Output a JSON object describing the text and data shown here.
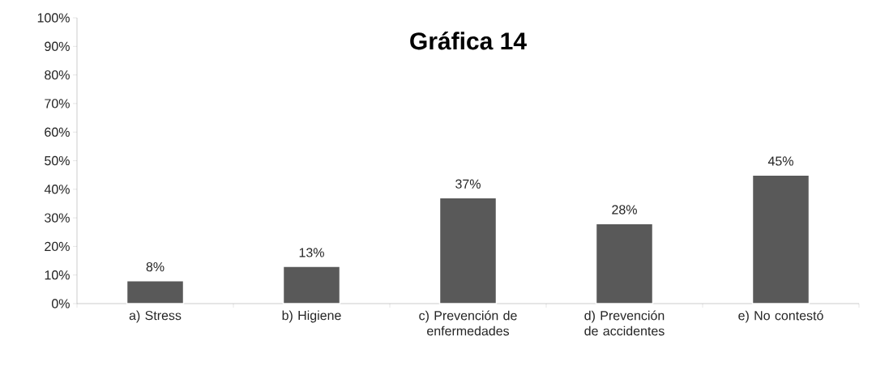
{
  "chart_data": {
    "type": "bar",
    "title": "Gráfica 14",
    "categories": [
      "a) Stress",
      "b) Higiene",
      "c) Prevención de enfermedades",
      "d) Prevención de accidentes",
      "e) No contestó"
    ],
    "values": [
      8,
      13,
      37,
      28,
      45
    ],
    "value_labels": [
      "8%",
      "13%",
      "37%",
      "28%",
      "45%"
    ],
    "color": "#595959",
    "ylim": [
      0,
      100
    ],
    "yticks": [
      {
        "value": 0,
        "label": "0%"
      },
      {
        "value": 10,
        "label": "10%"
      },
      {
        "value": 20,
        "label": "20%"
      },
      {
        "value": 30,
        "label": "30%"
      },
      {
        "value": 40,
        "label": "40%"
      },
      {
        "value": 50,
        "label": "50%"
      },
      {
        "value": 60,
        "label": "60%"
      },
      {
        "value": 70,
        "label": "70%"
      },
      {
        "value": 80,
        "label": "80%"
      },
      {
        "value": 90,
        "label": "90%"
      },
      {
        "value": 100,
        "label": "100%"
      }
    ],
    "grid": false
  }
}
